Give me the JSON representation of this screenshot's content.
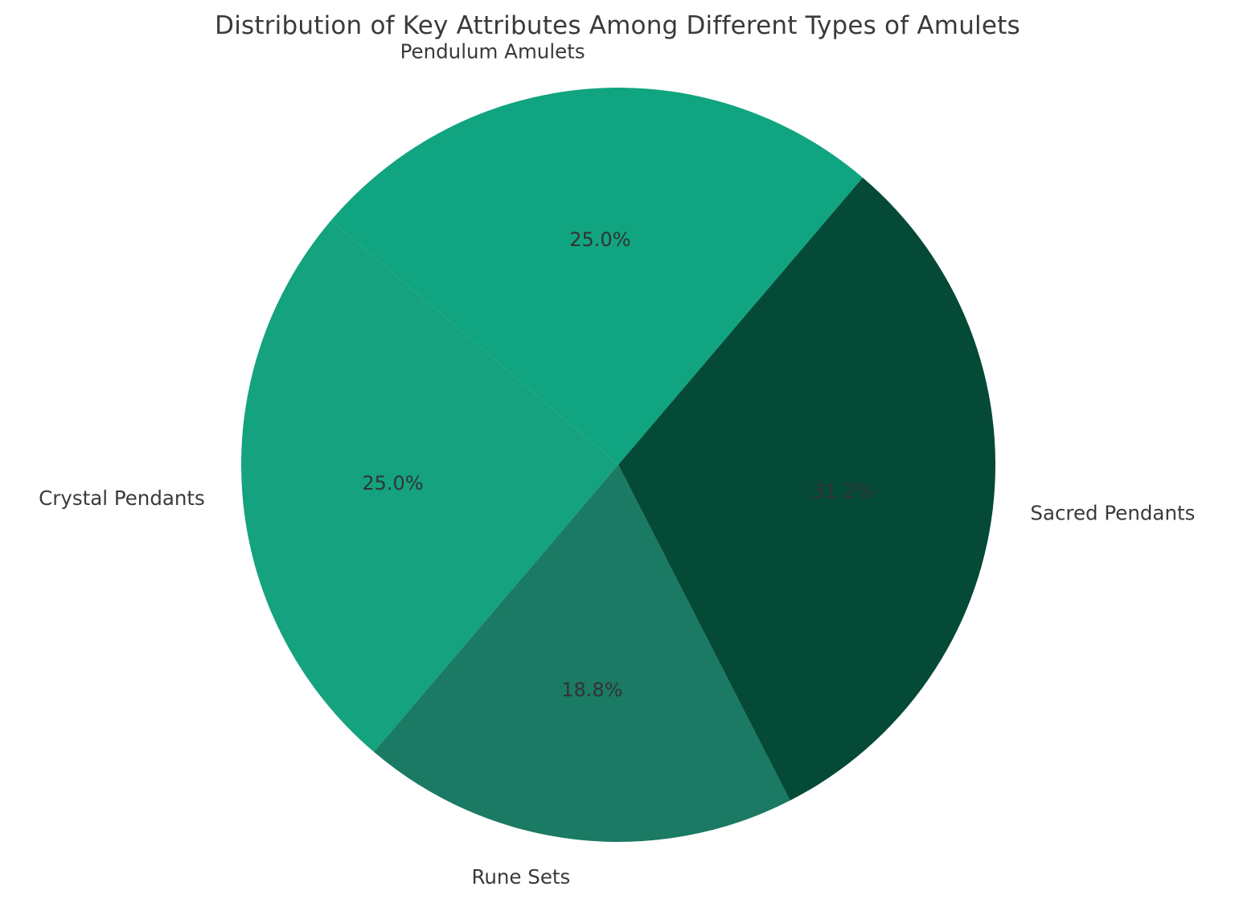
{
  "chart_data": {
    "type": "pie",
    "title": "Distribution of Key Attributes Among Different Types of Amulets",
    "labels": [
      "Pendulum Amulets",
      "Crystal Pendants",
      "Rune Sets",
      "Sacred Pendants"
    ],
    "values": [
      25.0,
      25.0,
      18.75,
      31.25
    ],
    "pct_labels": [
      "25.0%",
      "25.0%",
      "18.8%",
      "31.2%"
    ],
    "colors": [
      "#11A480",
      "#14A27F",
      "#1B7A63",
      "#054A37"
    ],
    "startangle": 49.6,
    "counterclock": true,
    "legend": "none",
    "background": "#ffffff",
    "title_color": "#3a3a3a",
    "label_color": "#3a3a3a",
    "pct_color": "#333333"
  }
}
